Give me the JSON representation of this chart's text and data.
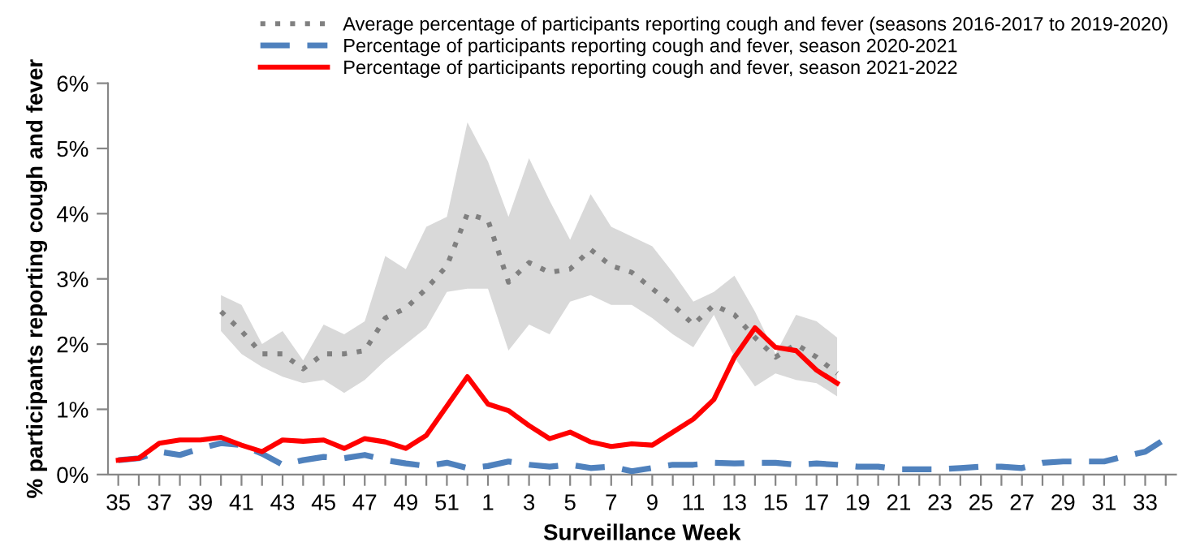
{
  "chart_data": {
    "type": "line",
    "xlabel": "Surveillance Week",
    "ylabel": "% participants reporting cough and fever",
    "categories": [
      "35",
      null,
      "37",
      null,
      "39",
      null,
      "41",
      null,
      "43",
      null,
      "45",
      null,
      "47",
      null,
      "49",
      null,
      "51",
      null,
      "1",
      null,
      "3",
      null,
      "5",
      null,
      "7",
      null,
      "9",
      null,
      "11",
      null,
      "13",
      null,
      "15",
      null,
      "17",
      null,
      "19",
      null,
      "21",
      null,
      "23",
      null,
      "25",
      null,
      "27",
      null,
      "29",
      null,
      "31",
      null,
      "33",
      null
    ],
    "ylim": [
      0,
      6
    ],
    "yticks": [
      {
        "value": 0,
        "label": "0%"
      },
      {
        "value": 1,
        "label": "1%"
      },
      {
        "value": 2,
        "label": "2%"
      },
      {
        "value": 3,
        "label": "3%"
      },
      {
        "value": 4,
        "label": "4%"
      },
      {
        "value": 5,
        "label": "5%"
      },
      {
        "value": 6,
        "label": "6%"
      }
    ],
    "grid": false,
    "legend": "top right",
    "series": [
      {
        "name": "Average percentage of participants reporting cough and fever (seasons 2016-2017 to 2019-2020)",
        "color": "#808080",
        "line_style": "dotted",
        "values": [
          null,
          null,
          null,
          null,
          null,
          2.5,
          2.2,
          1.85,
          1.85,
          1.62,
          1.85,
          1.85,
          1.9,
          2.4,
          2.55,
          2.85,
          3.2,
          4.0,
          3.9,
          2.95,
          3.25,
          3.1,
          3.15,
          3.45,
          3.2,
          3.1,
          2.85,
          2.6,
          2.3,
          2.6,
          2.45,
          2.1,
          1.8,
          2.0,
          1.8,
          1.55,
          null,
          null,
          null,
          null,
          null,
          null,
          null,
          null,
          null,
          null,
          null,
          null,
          null,
          null,
          null,
          null
        ],
        "lower": [
          null,
          null,
          null,
          null,
          null,
          2.2,
          1.85,
          1.65,
          1.5,
          1.4,
          1.45,
          1.25,
          1.45,
          1.75,
          2.0,
          2.25,
          2.8,
          2.85,
          2.85,
          1.9,
          2.3,
          2.15,
          2.65,
          2.75,
          2.6,
          2.6,
          2.4,
          2.15,
          1.95,
          2.45,
          1.8,
          1.35,
          1.55,
          1.45,
          1.4,
          1.2,
          null,
          null,
          null,
          null,
          null,
          null,
          null,
          null,
          null,
          null,
          null,
          null,
          null,
          null,
          null,
          null
        ],
        "upper": [
          null,
          null,
          null,
          null,
          null,
          2.75,
          2.6,
          2.0,
          2.2,
          1.75,
          2.3,
          2.15,
          2.35,
          3.35,
          3.15,
          3.8,
          3.95,
          5.4,
          4.8,
          3.95,
          4.85,
          4.2,
          3.6,
          4.3,
          3.8,
          3.65,
          3.5,
          3.1,
          2.65,
          2.8,
          3.05,
          2.5,
          1.85,
          2.45,
          2.35,
          2.1,
          null,
          null,
          null,
          null,
          null,
          null,
          null,
          null,
          null,
          null,
          null,
          null,
          null,
          null,
          null,
          null
        ]
      },
      {
        "name": "Percentage of participants reporting cough and fever, season 2020-2021",
        "color": "#4f81bd",
        "line_style": "dashed",
        "values": [
          0.22,
          0.25,
          0.35,
          0.3,
          0.4,
          0.48,
          0.45,
          0.32,
          0.15,
          0.22,
          0.27,
          0.25,
          0.3,
          0.22,
          0.17,
          0.13,
          0.18,
          0.1,
          0.13,
          0.2,
          0.15,
          0.12,
          0.15,
          0.1,
          0.12,
          0.05,
          0.1,
          0.15,
          0.15,
          0.18,
          0.17,
          0.18,
          0.18,
          0.15,
          0.17,
          0.15,
          0.12,
          0.12,
          0.08,
          0.08,
          0.08,
          0.1,
          0.12,
          0.12,
          0.1,
          0.18,
          0.2,
          0.2,
          0.2,
          0.28,
          0.35,
          0.55
        ]
      },
      {
        "name": "Percentage of participants reporting cough and fever, season 2021-2022",
        "color": "#ff0000",
        "line_style": "solid",
        "values": [
          0.22,
          0.25,
          0.48,
          0.53,
          0.53,
          0.57,
          0.45,
          0.35,
          0.53,
          0.51,
          0.53,
          0.4,
          0.55,
          0.5,
          0.4,
          0.6,
          1.05,
          1.5,
          1.08,
          0.98,
          0.75,
          0.55,
          0.65,
          0.5,
          0.43,
          0.47,
          0.45,
          0.65,
          0.85,
          1.15,
          1.8,
          2.25,
          1.95,
          1.9,
          1.6,
          1.4,
          null,
          null,
          null,
          null,
          null,
          null,
          null,
          null,
          null,
          null,
          null,
          null,
          null,
          null,
          null,
          null
        ]
      }
    ]
  }
}
